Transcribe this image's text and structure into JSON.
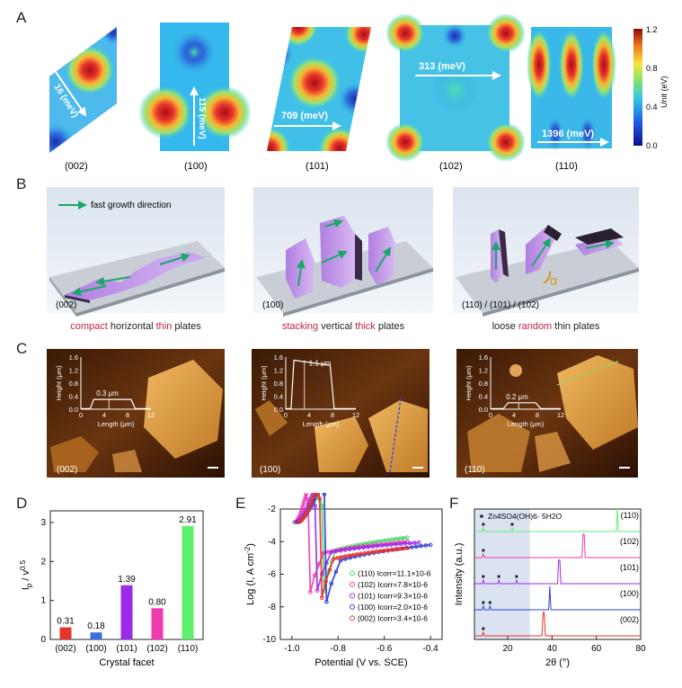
{
  "panels": {
    "a": "A",
    "b": "B",
    "c": "C",
    "d": "D",
    "e": "E",
    "f": "F"
  },
  "panel_a": {
    "maps": [
      {
        "facet": "(002)",
        "energy": "16 (meV)"
      },
      {
        "facet": "(100)",
        "energy": "115 (meV)"
      },
      {
        "facet": "(101)",
        "energy": "709 (meV)"
      },
      {
        "facet": "(102)",
        "energy": "313 (meV)"
      },
      {
        "facet": "(110)",
        "energy": "1396 (meV)"
      }
    ],
    "colorbar": {
      "ticks": [
        "1.2",
        "0.8",
        "0.4",
        "0.0"
      ],
      "label": "Unit (eV)"
    }
  },
  "panel_b": {
    "legend": "fast growth direction",
    "scenes": [
      {
        "tag": "(002)",
        "cap_pre": "",
        "cap_r1": "compact",
        "cap_mid": " horizontal ",
        "cap_r2": "thin",
        "cap_post": " plates"
      },
      {
        "tag": "(100)",
        "cap_pre": "",
        "cap_r1": "stacking",
        "cap_mid": " vertical ",
        "cap_r2": "thick",
        "cap_post": " plates"
      },
      {
        "tag": "(110) / (101) / (102)",
        "cap_pre": "loose ",
        "cap_r1": "random",
        "cap_mid": " thin plates",
        "cap_r2": "",
        "cap_post": ""
      }
    ],
    "alpha": "α"
  },
  "panel_c": {
    "images": [
      {
        "tag": "(002)",
        "thickness": "0.3 μm",
        "ymax": "1.6",
        "yticks": [
          "1.6",
          "1.2",
          "0.8",
          "0.4",
          "0.0"
        ],
        "xticks": [
          "0",
          "4",
          "8",
          "12"
        ]
      },
      {
        "tag": "(100)",
        "thickness": "1.1 μm",
        "ymax": "1.6",
        "yticks": [
          "1.6",
          "1.2",
          "0.8",
          "0.4",
          "0.0"
        ],
        "xticks": [
          "0",
          "4",
          "8",
          "12"
        ]
      },
      {
        "tag": "(110)",
        "thickness": "0.2 μm",
        "ymax": "1.6",
        "yticks": [
          "1.6",
          "1.2",
          "0.8",
          "0.4",
          "0.0"
        ],
        "xticks": [
          "0",
          "4",
          "8",
          "12"
        ]
      }
    ],
    "ylabel": "Height (μm)",
    "xlabel": "Length (μm)"
  },
  "chart_data": [
    {
      "type": "bar",
      "panel": "D",
      "categories": [
        "(002)",
        "(100)",
        "(101)",
        "(102)",
        "(110)"
      ],
      "values": [
        0.31,
        0.18,
        1.39,
        0.8,
        2.91
      ],
      "value_labels": [
        "0.31",
        "0.18",
        "1.39",
        "0.80",
        "2.91"
      ],
      "colors": [
        "#e8332d",
        "#3b6fe0",
        "#9b2be6",
        "#f03ab0",
        "#5ef06a"
      ],
      "xlabel": "Crystal facet",
      "ylabel": "Ip / v0.5",
      "ylim": [
        0,
        3.3
      ],
      "yticks": [
        "0",
        "1",
        "2",
        "3"
      ]
    },
    {
      "type": "scatter",
      "panel": "E",
      "xlabel": "Potential (V vs. SCE)",
      "ylabel": "Log (I, A cm-2)",
      "xlim": [
        -1.05,
        -0.35
      ],
      "ylim": [
        -10,
        -2
      ],
      "xticks": [
        "-1.0",
        "-0.8",
        "-0.6",
        "-0.4"
      ],
      "yticks": [
        "-2",
        "-4",
        "-6",
        "-8",
        "-10"
      ],
      "series": [
        {
          "name": "(110)",
          "label": "(110)  Icorr=11.1×10-6",
          "color": "#49d96b",
          "ecorr": -0.86,
          "icorr_log": -5.0,
          "end": [
            -0.5,
            -3.75
          ]
        },
        {
          "name": "(102)",
          "label": "(102)  Icorr=7.8×10-6",
          "color": "#f03ab0",
          "ecorr": -0.92,
          "icorr_log": -5.1,
          "end": [
            -0.5,
            -4.0
          ]
        },
        {
          "name": "(101)",
          "label": "(101)  Icorr=9.3×10-6",
          "color": "#9b2be6",
          "ecorr": -0.89,
          "icorr_log": -5.0,
          "end": [
            -0.45,
            -4.05
          ]
        },
        {
          "name": "(100)",
          "label": "(100)  Icorr=2.0×10-6",
          "color": "#2e3fd0",
          "ecorr": -0.85,
          "icorr_log": -5.7,
          "end": [
            -0.4,
            -4.2
          ]
        },
        {
          "name": "(002)",
          "label": "(002)  Icorr=3.4×10-6",
          "color": "#e8332d",
          "ecorr": -0.87,
          "icorr_log": -5.45,
          "end": [
            -0.5,
            -4.4
          ]
        }
      ]
    },
    {
      "type": "line",
      "panel": "F",
      "xlabel": "2θ (°)",
      "ylabel": "Intensity (a.u.)",
      "xlim": [
        5,
        80
      ],
      "xticks": [
        "20",
        "40",
        "60",
        "80"
      ],
      "shade_to": 30,
      "phase": "Zn4SO4(OH)6· 5H2O",
      "series": [
        {
          "name": "(110)",
          "color": "#5ef06a",
          "peak": 69.5,
          "h": 0.9,
          "dots": [
            9,
            22
          ]
        },
        {
          "name": "(102)",
          "color": "#f03ab0",
          "peak": 54.2,
          "h": 0.9,
          "dots": [
            9
          ]
        },
        {
          "name": "(101)",
          "color": "#9b2be6",
          "peak": 43.2,
          "h": 0.9,
          "dots": [
            9,
            16,
            24
          ]
        },
        {
          "name": "(100)",
          "color": "#2e3fd0",
          "peak": 39.0,
          "h": 0.9,
          "dots": [
            9,
            12
          ]
        },
        {
          "name": "(002)",
          "color": "#e8332d",
          "peak": 36.3,
          "h": 0.9,
          "dots": [
            9
          ]
        }
      ]
    }
  ]
}
